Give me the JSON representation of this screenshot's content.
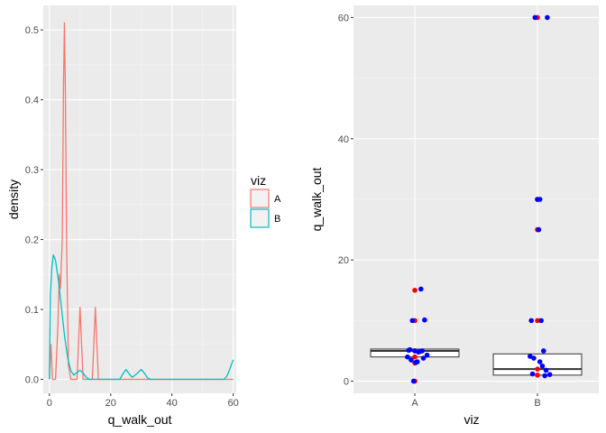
{
  "chart_data": [
    {
      "type": "density",
      "xlabel": "q_walk_out",
      "ylabel": "density",
      "xlim": [
        -2,
        61
      ],
      "ylim": [
        -0.02,
        0.535
      ],
      "x_ticks": [
        0,
        20,
        40,
        60
      ],
      "x_tick_labels": [
        "0",
        "20",
        "40",
        "60"
      ],
      "y_ticks": [
        0.0,
        0.1,
        0.2,
        0.3,
        0.4,
        0.5
      ],
      "y_tick_labels": [
        "0.0",
        "0.1",
        "0.2",
        "0.3",
        "0.4",
        "0.5"
      ],
      "legend": {
        "title": "viz",
        "entries": [
          "A",
          "B"
        ]
      },
      "series": [
        {
          "name": "A",
          "color": "#F8766D",
          "points": [
            [
              0,
              0.0
            ],
            [
              0.5,
              0.05
            ],
            [
              1,
              0.0
            ],
            [
              2,
              0.0
            ],
            [
              2.8,
              0.08
            ],
            [
              3.2,
              0.15
            ],
            [
              3.6,
              0.13
            ],
            [
              4.2,
              0.2
            ],
            [
              4.6,
              0.42
            ],
            [
              4.9,
              0.51
            ],
            [
              5.2,
              0.42
            ],
            [
              5.6,
              0.2
            ],
            [
              6.2,
              0.02
            ],
            [
              7,
              0.0
            ],
            [
              9,
              0.0
            ],
            [
              9.5,
              0.05
            ],
            [
              10,
              0.103
            ],
            [
              10.5,
              0.05
            ],
            [
              11,
              0.0
            ],
            [
              14,
              0.0
            ],
            [
              14.5,
              0.05
            ],
            [
              15,
              0.103
            ],
            [
              15.5,
              0.05
            ],
            [
              16,
              0.0
            ],
            [
              60,
              0.0
            ]
          ]
        },
        {
          "name": "B",
          "color": "#00BFC4",
          "points": [
            [
              0,
              0.0
            ],
            [
              0.3,
              0.12
            ],
            [
              0.8,
              0.16
            ],
            [
              1.3,
              0.178
            ],
            [
              2,
              0.17
            ],
            [
              3,
              0.14
            ],
            [
              4,
              0.1
            ],
            [
              5,
              0.06
            ],
            [
              6,
              0.03
            ],
            [
              7,
              0.012
            ],
            [
              8,
              0.006
            ],
            [
              9,
              0.01
            ],
            [
              10,
              0.013
            ],
            [
              11,
              0.009
            ],
            [
              12,
              0.003
            ],
            [
              13,
              0.0
            ],
            [
              23,
              0.0
            ],
            [
              24,
              0.008
            ],
            [
              25,
              0.014
            ],
            [
              26,
              0.008
            ],
            [
              27,
              0.003
            ],
            [
              28,
              0.006
            ],
            [
              29,
              0.01
            ],
            [
              30,
              0.014
            ],
            [
              31,
              0.009
            ],
            [
              32,
              0.002
            ],
            [
              33,
              0.0
            ],
            [
              57,
              0.0
            ],
            [
              58,
              0.005
            ],
            [
              59,
              0.016
            ],
            [
              60,
              0.028
            ]
          ]
        }
      ]
    },
    {
      "type": "boxplot",
      "xlabel": "viz",
      "ylabel": "q_walk_out",
      "categories": [
        "A",
        "B"
      ],
      "ylim": [
        -2,
        62
      ],
      "y_ticks": [
        0,
        20,
        40,
        60
      ],
      "y_tick_labels": [
        "0",
        "20",
        "40",
        "60"
      ],
      "boxes": [
        {
          "category": "A",
          "q1": 4,
          "median": 5,
          "q3": 5.3,
          "whisker_low": 4,
          "whisker_high": 5.3
        },
        {
          "category": "B",
          "q1": 1,
          "median": 2,
          "q3": 4.5,
          "whisker_low": 1,
          "whisker_high": 4.5
        }
      ],
      "points_red": [
        {
          "category": "A",
          "values": [
            15,
            10,
            5,
            4,
            3,
            0
          ]
        },
        {
          "category": "B",
          "values": [
            60,
            30,
            25,
            10,
            2,
            1
          ]
        }
      ],
      "points_blue": [
        {
          "category": "A",
          "offsets": [
            0.05,
            -0.02,
            0.08,
            -0.05,
            0.0,
            0.03,
            -0.04,
            0.1,
            0.07,
            -0.03,
            0.02,
            -0.06,
            0.04,
            0.01,
            0.06,
            -0.01
          ],
          "values": [
            15.2,
            10,
            10.1,
            5.1,
            5,
            4.8,
            5.2,
            4.3,
            3.8,
            3.5,
            3.2,
            4,
            4.9,
            3.1,
            5,
            0
          ]
        },
        {
          "category": "B",
          "offsets": [
            -0.02,
            0.08,
            0.0,
            0.02,
            0.01,
            -0.05,
            0.03,
            0.05,
            -0.03,
            -0.06,
            0.04,
            0.07,
            -0.04,
            0.1,
            0.06,
            0.02
          ],
          "values": [
            60,
            60,
            30,
            30,
            25,
            10,
            10,
            5,
            3.8,
            4.1,
            2.5,
            1.8,
            1.2,
            1.1,
            0.9,
            3.2
          ]
        }
      ],
      "red_color": "#FF0000",
      "blue_color": "#0000FF"
    }
  ]
}
